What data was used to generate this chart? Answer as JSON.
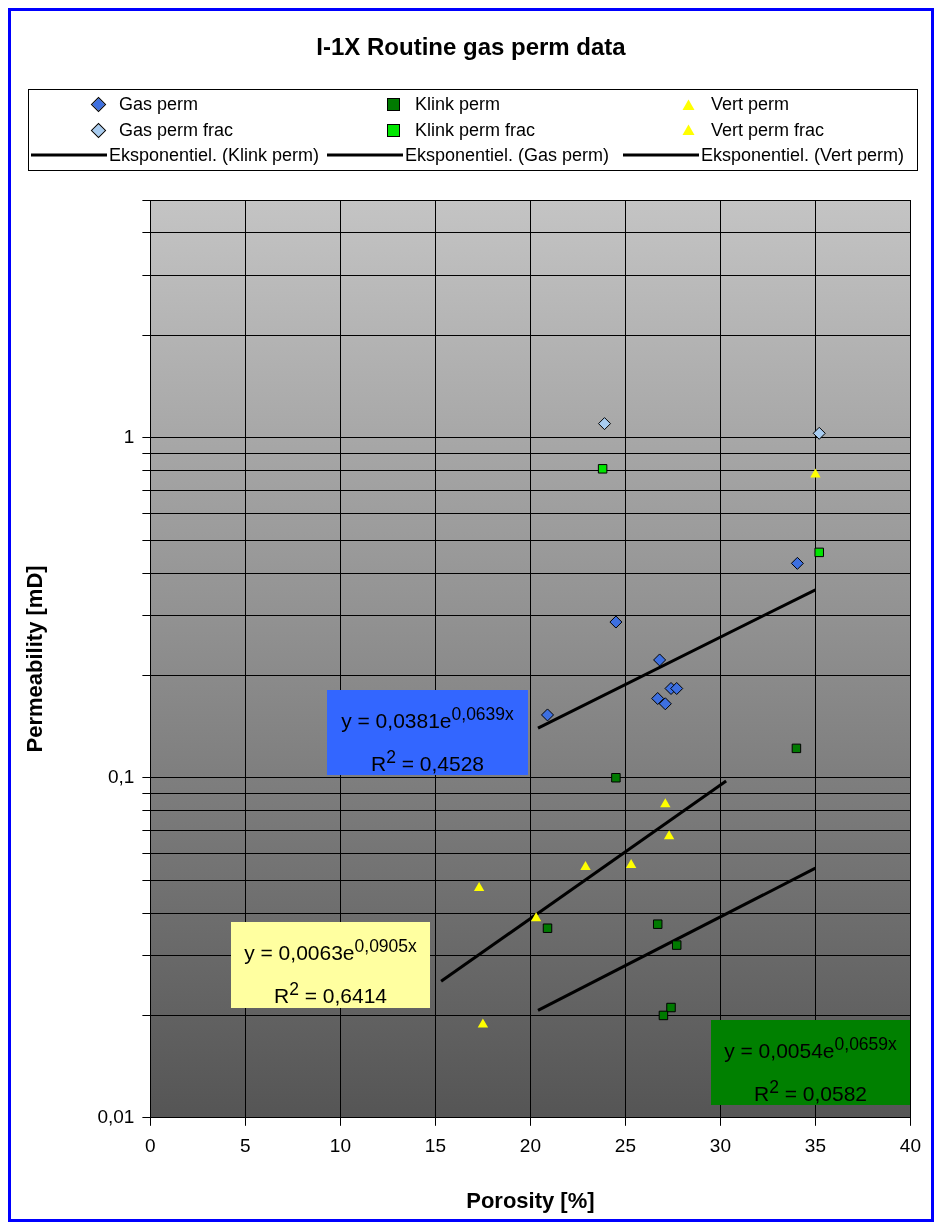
{
  "chart_data": {
    "type": "scatter",
    "title": "I-1X Routine gas perm data",
    "xlabel": "Porosity [%]",
    "ylabel": "Permeability [mD]",
    "log": "y",
    "grid": true,
    "legend": "top",
    "xlim": [
      0,
      40
    ],
    "xticks": [
      0,
      5,
      10,
      15,
      20,
      25,
      30,
      35,
      40
    ],
    "ylim": [
      0.01,
      5
    ],
    "yticks": [
      {
        "value": 0.01,
        "label": "0,01"
      },
      {
        "value": 0.02,
        "label": null
      },
      {
        "value": 0.03,
        "label": null
      },
      {
        "value": 0.04,
        "label": null
      },
      {
        "value": 0.05,
        "label": null
      },
      {
        "value": 0.06,
        "label": null
      },
      {
        "value": 0.07,
        "label": null
      },
      {
        "value": 0.08,
        "label": null
      },
      {
        "value": 0.09,
        "label": null
      },
      {
        "value": 0.1,
        "label": "0,1"
      },
      {
        "value": 0.2,
        "label": null
      },
      {
        "value": 0.3,
        "label": null
      },
      {
        "value": 0.4,
        "label": null
      },
      {
        "value": 0.5,
        "label": null
      },
      {
        "value": 0.6,
        "label": null
      },
      {
        "value": 0.7,
        "label": null
      },
      {
        "value": 0.8,
        "label": null
      },
      {
        "value": 0.9,
        "label": null
      },
      {
        "value": 1,
        "label": "1"
      },
      {
        "value": 2,
        "label": null
      },
      {
        "value": 3,
        "label": null
      },
      {
        "value": 4,
        "label": null
      },
      {
        "value": 5,
        "label": null
      }
    ],
    "series": [
      {
        "name": "Gas perm",
        "type": "scatter",
        "marker": "diamond",
        "color": "#3d6fe0",
        "x": [
          34.05,
          24.5,
          26.8,
          27.4,
          27.7,
          26.7,
          27.1,
          20.9
        ],
        "values": [
          0.427,
          0.287,
          0.222,
          0.183,
          0.183,
          0.171,
          0.165,
          0.153
        ]
      },
      {
        "name": "Klink perm",
        "type": "scatter",
        "marker": "square",
        "color": "#007a00",
        "x": [
          34.0,
          24.5,
          20.9,
          26.7,
          27.7,
          27.4,
          27.0
        ],
        "values": [
          0.122,
          0.1,
          0.0361,
          0.0371,
          0.0322,
          0.0211,
          0.02
        ]
      },
      {
        "name": "Vert perm",
        "type": "scatter",
        "marker": "triangle",
        "color": "#ffff00",
        "x": [
          17.3,
          17.5,
          20.3,
          22.9,
          25.3,
          27.1,
          27.3
        ],
        "values": [
          0.0474,
          0.0188,
          0.0386,
          0.0546,
          0.0554,
          0.0836,
          0.0673
        ]
      },
      {
        "name": "Gas perm frac",
        "type": "scatter",
        "marker": "diamond",
        "color": "#a8ccf0",
        "x": [
          23.9,
          35.2
        ],
        "values": [
          1.1,
          1.03
        ]
      },
      {
        "name": "Klink perm frac",
        "type": "scatter",
        "marker": "square",
        "color": "#00e600",
        "x": [
          23.8,
          35.2
        ],
        "values": [
          0.81,
          0.46
        ]
      },
      {
        "name": "Vert perm frac",
        "type": "scatter",
        "marker": "triangle",
        "color": "#ffff00",
        "x": [
          35.0
        ],
        "values": [
          0.78
        ]
      },
      {
        "name": "Eksponentiel. (Klink perm)",
        "type": "line",
        "marker": "none",
        "line_style": "solid",
        "color": "#000000",
        "x": [
          20.4,
          35.0
        ],
        "values": [
          0.0207,
          0.0542
        ]
      },
      {
        "name": "Eksponentiel. (Gas perm)",
        "type": "line",
        "marker": "none",
        "line_style": "solid",
        "color": "#000000",
        "x": [
          20.4,
          35.0
        ],
        "values": [
          0.14,
          0.357
        ]
      },
      {
        "name": "Eksponentiel. (Vert perm)",
        "type": "line",
        "marker": "none",
        "line_style": "solid",
        "color": "#000000",
        "x": [
          15.3,
          30.3
        ],
        "values": [
          0.0252,
          0.0978
        ]
      }
    ],
    "annotations": [
      "y = 0,0381e$^{0,0639x}$\nR$^{2}$ = 0,4528",
      "y = 0,0063e$^{0,0905x}$\nR$^{2}$ = 0,6414",
      "y = 0,0054e$^{0,0659x}$\nR$^{2}$ = 0,0582"
    ]
  }
}
